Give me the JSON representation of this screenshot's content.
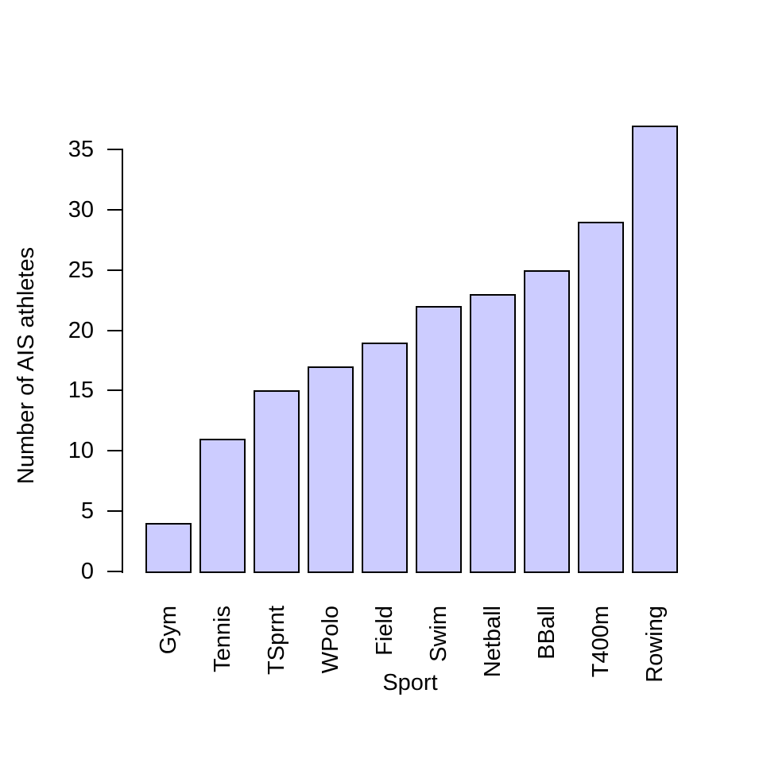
{
  "chart_data": {
    "type": "bar",
    "categories": [
      "Gym",
      "Tennis",
      "TSprnt",
      "WPolo",
      "Field",
      "Swim",
      "Netball",
      "BBall",
      "T400m",
      "Rowing"
    ],
    "values": [
      4,
      11,
      15,
      17,
      19,
      22,
      23,
      25,
      29,
      37
    ],
    "title": "",
    "xlabel": "Sport",
    "ylabel": "Number of AIS athletes",
    "yticks": [
      0,
      5,
      10,
      15,
      20,
      25,
      30,
      35
    ],
    "ylim": [
      0,
      37
    ],
    "grid": false,
    "legend": null,
    "bar_fill_color": "#ccccff",
    "bar_border_color": "#000000",
    "axis_color": "#000000",
    "background_color": "#ffffff"
  }
}
